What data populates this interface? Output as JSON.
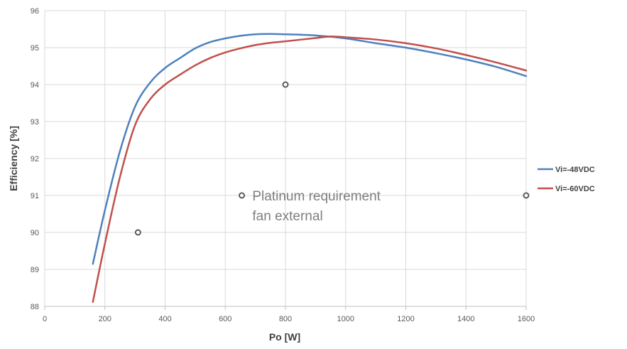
{
  "chart_data": {
    "type": "line",
    "xlabel": "Po [W]",
    "ylabel": "Efficiency [%]",
    "xlim": [
      0,
      1600
    ],
    "ylim": [
      88,
      96
    ],
    "xticks": [
      0,
      200,
      400,
      600,
      800,
      1000,
      1200,
      1400,
      1600
    ],
    "yticks": [
      88,
      89,
      90,
      91,
      92,
      93,
      94,
      95,
      96
    ],
    "grid": true,
    "legend_position": "right",
    "series": [
      {
        "name": "Vi=-48VDC",
        "color": "#4f81bd",
        "x": [
          160,
          200,
          250,
          300,
          350,
          400,
          450,
          500,
          550,
          600,
          650,
          700,
          750,
          800,
          900,
          1000,
          1100,
          1200,
          1300,
          1400,
          1500,
          1600
        ],
        "y": [
          89.15,
          90.6,
          92.2,
          93.4,
          94.05,
          94.45,
          94.72,
          94.98,
          95.15,
          95.25,
          95.32,
          95.36,
          95.37,
          95.36,
          95.33,
          95.25,
          95.12,
          95.0,
          94.85,
          94.68,
          94.48,
          94.23
        ]
      },
      {
        "name": "Vi=-60VDC",
        "color": "#c0504d",
        "x": [
          160,
          200,
          250,
          300,
          350,
          400,
          450,
          500,
          550,
          600,
          650,
          700,
          750,
          800,
          900,
          950,
          1000,
          1100,
          1200,
          1300,
          1400,
          1500,
          1600
        ],
        "y": [
          88.12,
          89.7,
          91.5,
          92.9,
          93.6,
          94.0,
          94.27,
          94.52,
          94.72,
          94.87,
          94.98,
          95.07,
          95.13,
          95.17,
          95.26,
          95.3,
          95.28,
          95.22,
          95.12,
          94.98,
          94.8,
          94.6,
          94.38
        ]
      }
    ],
    "requirement_points": [
      {
        "x": 310,
        "y": 90
      },
      {
        "x": 655,
        "y": 91
      },
      {
        "x": 800,
        "y": 94
      },
      {
        "x": 1600,
        "y": 91
      }
    ],
    "annotation": {
      "lines": [
        "Platinum requirement",
        "fan external"
      ],
      "x": 690,
      "y": 91
    }
  }
}
